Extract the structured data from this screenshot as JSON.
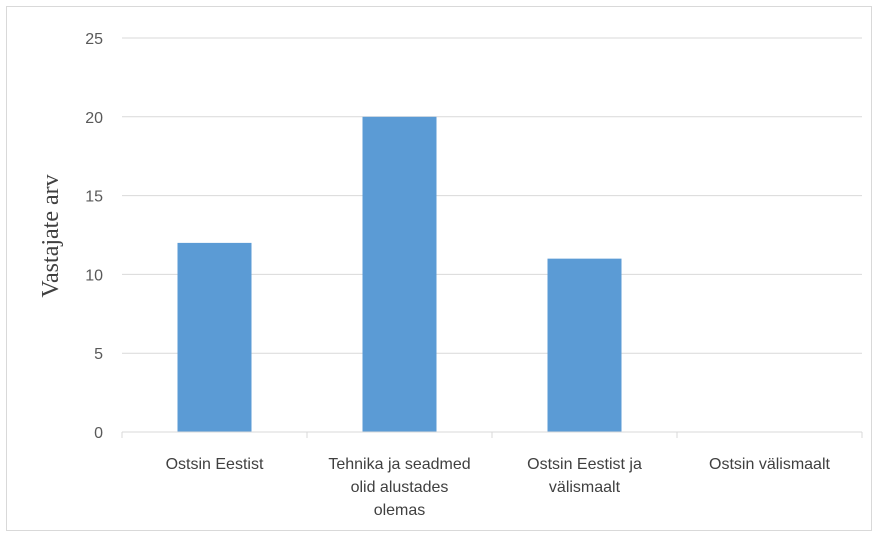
{
  "chart_data": {
    "type": "bar",
    "categories": [
      [
        "Ostsin Eestist"
      ],
      [
        "Tehnika ja seadmed",
        "olid alustades",
        "olemas"
      ],
      [
        "Ostsin Eestist ja",
        "välismaalt"
      ],
      [
        "Ostsin välismaalt"
      ]
    ],
    "values": [
      12,
      20,
      11,
      0
    ],
    "ylabel": "Vastajate arv",
    "ylim": [
      0,
      25
    ],
    "yticks": [
      0,
      5,
      10,
      15,
      20,
      25
    ],
    "grid": true,
    "bar_color": "#5b9bd5",
    "grid_color": "#d9d9d9"
  }
}
